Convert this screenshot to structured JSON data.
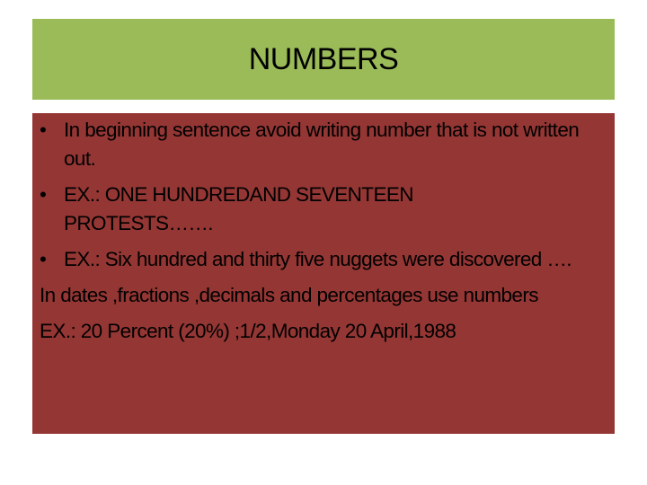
{
  "slide": {
    "title": "NUMBERS",
    "bullets": [
      {
        "bullet": "•",
        "text": "In beginning sentence avoid writing number that is not written out."
      },
      {
        "bullet": "•",
        "text": "EX.: ONE HUNDREDAND SEVENTEEN PROTESTS……."
      },
      {
        "bullet": "•",
        "text": "EX.: Six hundred  and thirty five nuggets were discovered …."
      }
    ],
    "paragraphs": [
      "In dates ,fractions ,decimals and percentages use numbers",
      "EX.: 20 Percent (20%) ;1/2,Monday 20 April,1988"
    ]
  },
  "colors": {
    "title_bg": "#9bbb59",
    "body_bg": "#943634"
  }
}
